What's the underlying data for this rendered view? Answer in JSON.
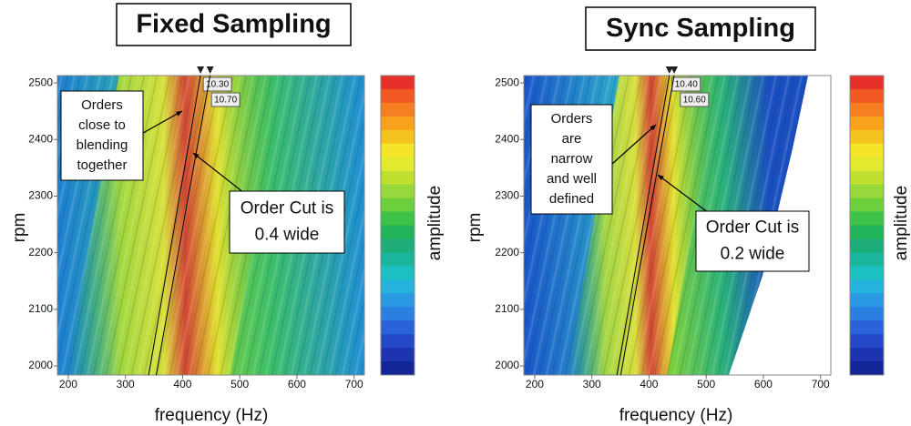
{
  "chart_data": [
    {
      "type": "heatmap",
      "title": "Fixed Sampling",
      "xlabel": "frequency (Hz)",
      "ylabel": "rpm",
      "colorbar_label": "amplitude",
      "xlim": [
        181,
        718
      ],
      "xticks": [
        200,
        300,
        400,
        500,
        600,
        700
      ],
      "ylim": [
        1984,
        2513
      ],
      "yticks": [
        2000,
        2100,
        2200,
        2300,
        2400,
        2500
      ],
      "cursors": [
        {
          "value": 10.3,
          "label": "10.30"
        },
        {
          "value": 10.7,
          "label": "10.70"
        }
      ],
      "annotations": [
        [
          "Orders",
          "close to",
          "blending",
          "together"
        ],
        [
          "Order Cut is",
          "0.4 wide"
        ]
      ]
    },
    {
      "type": "heatmap",
      "title": "Sync Sampling",
      "xlabel": "frequency (Hz)",
      "ylabel": "rpm",
      "colorbar_label": "amplitude",
      "xlim": [
        181,
        718
      ],
      "xticks": [
        200,
        300,
        400,
        500,
        600,
        700
      ],
      "ylim": [
        1984,
        2513
      ],
      "yticks": [
        2000,
        2100,
        2200,
        2300,
        2400,
        2500
      ],
      "cursors": [
        {
          "value": 10.4,
          "label": "10.40"
        },
        {
          "value": 10.6,
          "label": "10.60"
        }
      ],
      "annotations": [
        [
          "Orders",
          "are",
          "narrow",
          "and well",
          "defined"
        ],
        [
          "Order Cut is",
          "0.2 wide"
        ]
      ]
    }
  ]
}
